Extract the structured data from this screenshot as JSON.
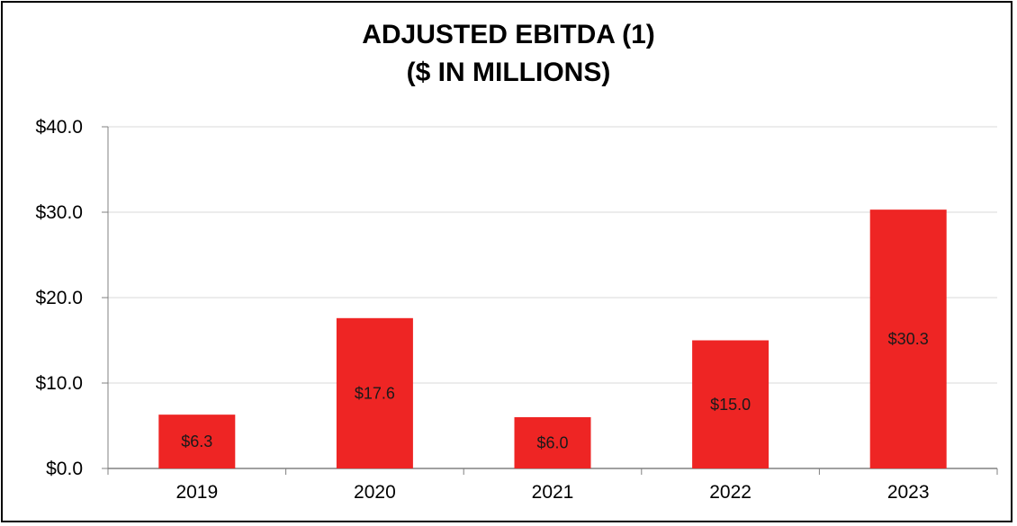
{
  "chart_data": {
    "type": "bar",
    "title": "ADJUSTED EBITDA (1)",
    "subtitle": "($ IN MILLIONS)",
    "categories": [
      "2019",
      "2020",
      "2021",
      "2022",
      "2023"
    ],
    "values": [
      6.3,
      17.6,
      6.0,
      15.0,
      30.3
    ],
    "data_labels": [
      "$6.3",
      "$17.6",
      "$6.0",
      "$15.0",
      "$30.3"
    ],
    "y_ticks": [
      0,
      10,
      20,
      30,
      40
    ],
    "y_tick_labels": [
      "$0.0",
      "$10.0",
      "$20.0",
      "$30.0",
      "$40.0"
    ],
    "xlabel": "",
    "ylabel": "",
    "ylim": [
      0,
      40
    ],
    "grid": true,
    "bar_color": "#EE2524",
    "grid_color": "#d9d9d9",
    "axis_color": "#808080"
  }
}
